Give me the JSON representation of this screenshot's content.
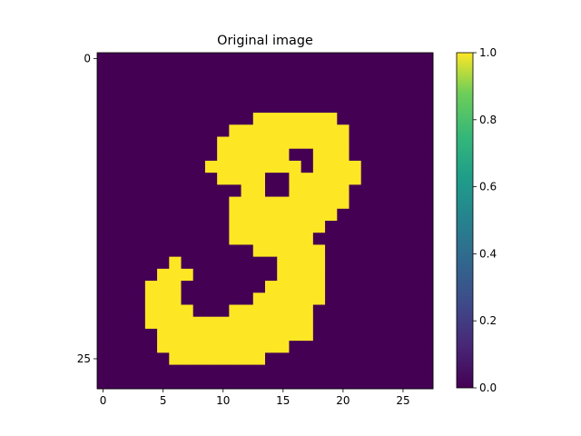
{
  "chart_data": {
    "type": "heatmap",
    "title": "Original image",
    "xlabel": "",
    "ylabel": "",
    "colormap": "viridis",
    "colors": {
      "low": "#440154",
      "high": "#fde725",
      "bar_mid_low": "#3b528b",
      "bar_mid": "#21918c",
      "bar_mid_high": "#5ec962"
    },
    "grid": false,
    "shape": [
      28,
      28
    ],
    "x_ticks": [
      0,
      5,
      10,
      15,
      20,
      25
    ],
    "y_ticks": [
      0,
      25
    ],
    "colorbar": {
      "min": 0.0,
      "max": 1.0,
      "ticks": [
        "0.0",
        "0.2",
        "0.4",
        "0.6",
        "0.8",
        "1.0"
      ]
    },
    "rows": [
      "0000000000000000000000000000",
      "0000000000000000000000000000",
      "0000000000000000000000000000",
      "0000000000000000000000000000",
      "0000000000000000000000000000",
      "0000000000000000000000000000",
      "0000000000000000000000000000",
      "0000000000000000000000000000",
      "0000000000000000000000000000",
      "0000000000000000000000000000",
      "0000000000000000000000000000",
      "0000000000000000000000000000",
      "0000000000000000000000000000",
      "0000000000000000000000000000",
      "0000000000000000000000000000",
      "0000000000000000000000000000",
      "0000000000000000000000000000",
      "0000000000000000000000000000",
      "0000000000000000000000000000",
      "0000000000000000000000000000",
      "0000000000000000000000000000",
      "0000000000000000000000000000",
      "0000000000000000000000000000",
      "0000000000000000000000000000",
      "0000000000000000000000000000",
      "0000000000000000000000000000",
      "0000000000000000000000000000",
      "0000000000000000000000000000"
    ],
    "row_patches": [
      {
        "row": 5,
        "runs": [
          [
            13,
            19
          ]
        ]
      },
      {
        "row": 6,
        "runs": [
          [
            11,
            20
          ]
        ]
      },
      {
        "row": 7,
        "runs": [
          [
            10,
            20
          ]
        ]
      },
      {
        "row": 8,
        "runs": [
          [
            10,
            15
          ],
          [
            18,
            20
          ]
        ]
      },
      {
        "row": 9,
        "runs": [
          [
            9,
            16
          ],
          [
            18,
            21
          ]
        ]
      },
      {
        "row": 10,
        "runs": [
          [
            10,
            13
          ],
          [
            16,
            21
          ]
        ]
      },
      {
        "row": 11,
        "runs": [
          [
            12,
            13
          ],
          [
            16,
            20
          ]
        ]
      },
      {
        "row": 12,
        "runs": [
          [
            11,
            20
          ]
        ]
      },
      {
        "row": 13,
        "runs": [
          [
            11,
            19
          ]
        ]
      },
      {
        "row": 14,
        "runs": [
          [
            11,
            18
          ]
        ]
      },
      {
        "row": 15,
        "runs": [
          [
            11,
            17
          ]
        ]
      },
      {
        "row": 16,
        "runs": [
          [
            13,
            18
          ]
        ]
      },
      {
        "row": 17,
        "runs": [
          [
            6,
            6
          ],
          [
            15,
            18
          ]
        ]
      },
      {
        "row": 18,
        "runs": [
          [
            5,
            7
          ],
          [
            15,
            18
          ]
        ]
      },
      {
        "row": 19,
        "runs": [
          [
            4,
            6
          ],
          [
            14,
            18
          ]
        ]
      },
      {
        "row": 20,
        "runs": [
          [
            4,
            6
          ],
          [
            13,
            18
          ]
        ]
      },
      {
        "row": 21,
        "runs": [
          [
            4,
            7
          ],
          [
            11,
            17
          ]
        ]
      },
      {
        "row": 22,
        "runs": [
          [
            4,
            17
          ]
        ]
      },
      {
        "row": 23,
        "runs": [
          [
            5,
            17
          ]
        ]
      },
      {
        "row": 24,
        "runs": [
          [
            5,
            15
          ]
        ]
      },
      {
        "row": 25,
        "runs": [
          [
            6,
            13
          ]
        ]
      }
    ]
  }
}
